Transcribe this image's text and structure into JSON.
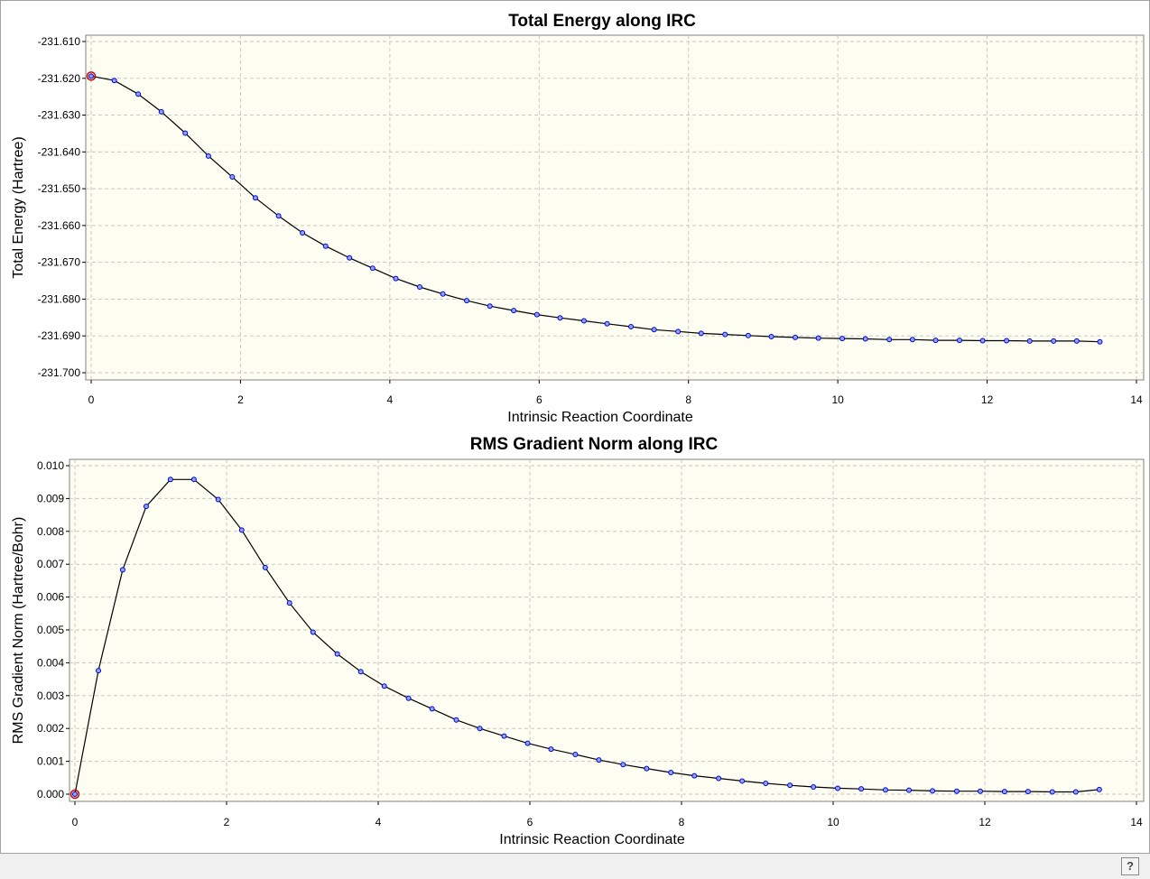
{
  "chart_data": [
    {
      "type": "line",
      "title": "Total Energy along IRC",
      "xlabel": "Intrinsic Reaction Coordinate",
      "ylabel": "Total Energy (Hartree)",
      "xlim": [
        0,
        14
      ],
      "ylim": [
        -231.7,
        -231.61
      ],
      "xticks": [
        "0",
        "2",
        "4",
        "6",
        "8",
        "10",
        "12",
        "14"
      ],
      "yticks": [
        "-231.610",
        "-231.620",
        "-231.630",
        "-231.640",
        "-231.650",
        "-231.660",
        "-231.670",
        "-231.680",
        "-231.690",
        "-231.700"
      ],
      "grid": true,
      "highlight_index": 0,
      "x": [
        0.0,
        0.31,
        0.63,
        0.94,
        1.26,
        1.57,
        1.89,
        2.2,
        2.51,
        2.83,
        3.14,
        3.46,
        3.77,
        4.08,
        4.4,
        4.71,
        5.03,
        5.34,
        5.66,
        5.97,
        6.28,
        6.6,
        6.91,
        7.23,
        7.54,
        7.86,
        8.17,
        8.49,
        8.8,
        9.11,
        9.43,
        9.74,
        10.06,
        10.37,
        10.69,
        11.0,
        11.31,
        11.63,
        11.94,
        12.26,
        12.57,
        12.89,
        13.2,
        13.51
      ],
      "y": [
        -231.6194,
        -231.6206,
        -231.6243,
        -231.6291,
        -231.6349,
        -231.6411,
        -231.6468,
        -231.6525,
        -231.6574,
        -231.662,
        -231.6656,
        -231.6688,
        -231.6716,
        -231.6744,
        -231.6767,
        -231.6786,
        -231.6804,
        -231.6819,
        -231.6831,
        -231.6842,
        -231.6851,
        -231.6859,
        -231.6867,
        -231.6875,
        -231.6883,
        -231.6888,
        -231.6893,
        -231.6896,
        -231.6899,
        -231.6902,
        -231.6904,
        -231.6906,
        -231.6907,
        -231.6908,
        -231.691,
        -231.691,
        -231.6912,
        -231.6912,
        -231.6913,
        -231.6913,
        -231.6914,
        -231.6914,
        -231.6914,
        -231.6916
      ]
    },
    {
      "type": "line",
      "title": "RMS Gradient Norm along IRC",
      "xlabel": "Intrinsic Reaction Coordinate",
      "ylabel": "RMS Gradient Norm (Hartree/Bohr)",
      "xlim": [
        0,
        14
      ],
      "ylim": [
        0.0,
        0.01
      ],
      "xticks": [
        "0",
        "2",
        "4",
        "6",
        "8",
        "10",
        "12",
        "14"
      ],
      "yticks": [
        "0.000",
        "0.001",
        "0.002",
        "0.003",
        "0.004",
        "0.005",
        "0.006",
        "0.007",
        "0.008",
        "0.009",
        "0.010"
      ],
      "grid": true,
      "highlight_index": 0,
      "x": [
        0.0,
        0.31,
        0.63,
        0.94,
        1.26,
        1.57,
        1.89,
        2.2,
        2.51,
        2.83,
        3.14,
        3.46,
        3.77,
        4.08,
        4.4,
        4.71,
        5.03,
        5.34,
        5.66,
        5.97,
        6.28,
        6.6,
        6.91,
        7.23,
        7.54,
        7.86,
        8.17,
        8.49,
        8.8,
        9.11,
        9.43,
        9.74,
        10.06,
        10.37,
        10.69,
        11.0,
        11.31,
        11.63,
        11.94,
        12.26,
        12.57,
        12.89,
        13.2,
        13.51
      ],
      "y": [
        0.0,
        0.00376,
        0.00683,
        0.00876,
        0.00958,
        0.00958,
        0.00897,
        0.00804,
        0.0069,
        0.00582,
        0.00493,
        0.00427,
        0.00373,
        0.00329,
        0.00292,
        0.0026,
        0.00226,
        0.002,
        0.00177,
        0.00155,
        0.00137,
        0.00121,
        0.00104,
        0.0009,
        0.00078,
        0.00066,
        0.00056,
        0.00048,
        0.0004,
        0.00033,
        0.00027,
        0.00022,
        0.00018,
        0.00016,
        0.00013,
        0.00012,
        0.0001,
        9e-05,
        9e-05,
        8e-05,
        8e-05,
        7e-05,
        7e-05,
        0.00014
      ]
    }
  ],
  "colors": {
    "plot_background": "#fdfdf1",
    "grid": "#c8c8c8",
    "line": "#000000",
    "marker_fill": "#8ea2ff",
    "marker_stroke": "#0000cc",
    "highlight": "#cc0000"
  },
  "status_bar": {
    "help_icon": "?"
  }
}
